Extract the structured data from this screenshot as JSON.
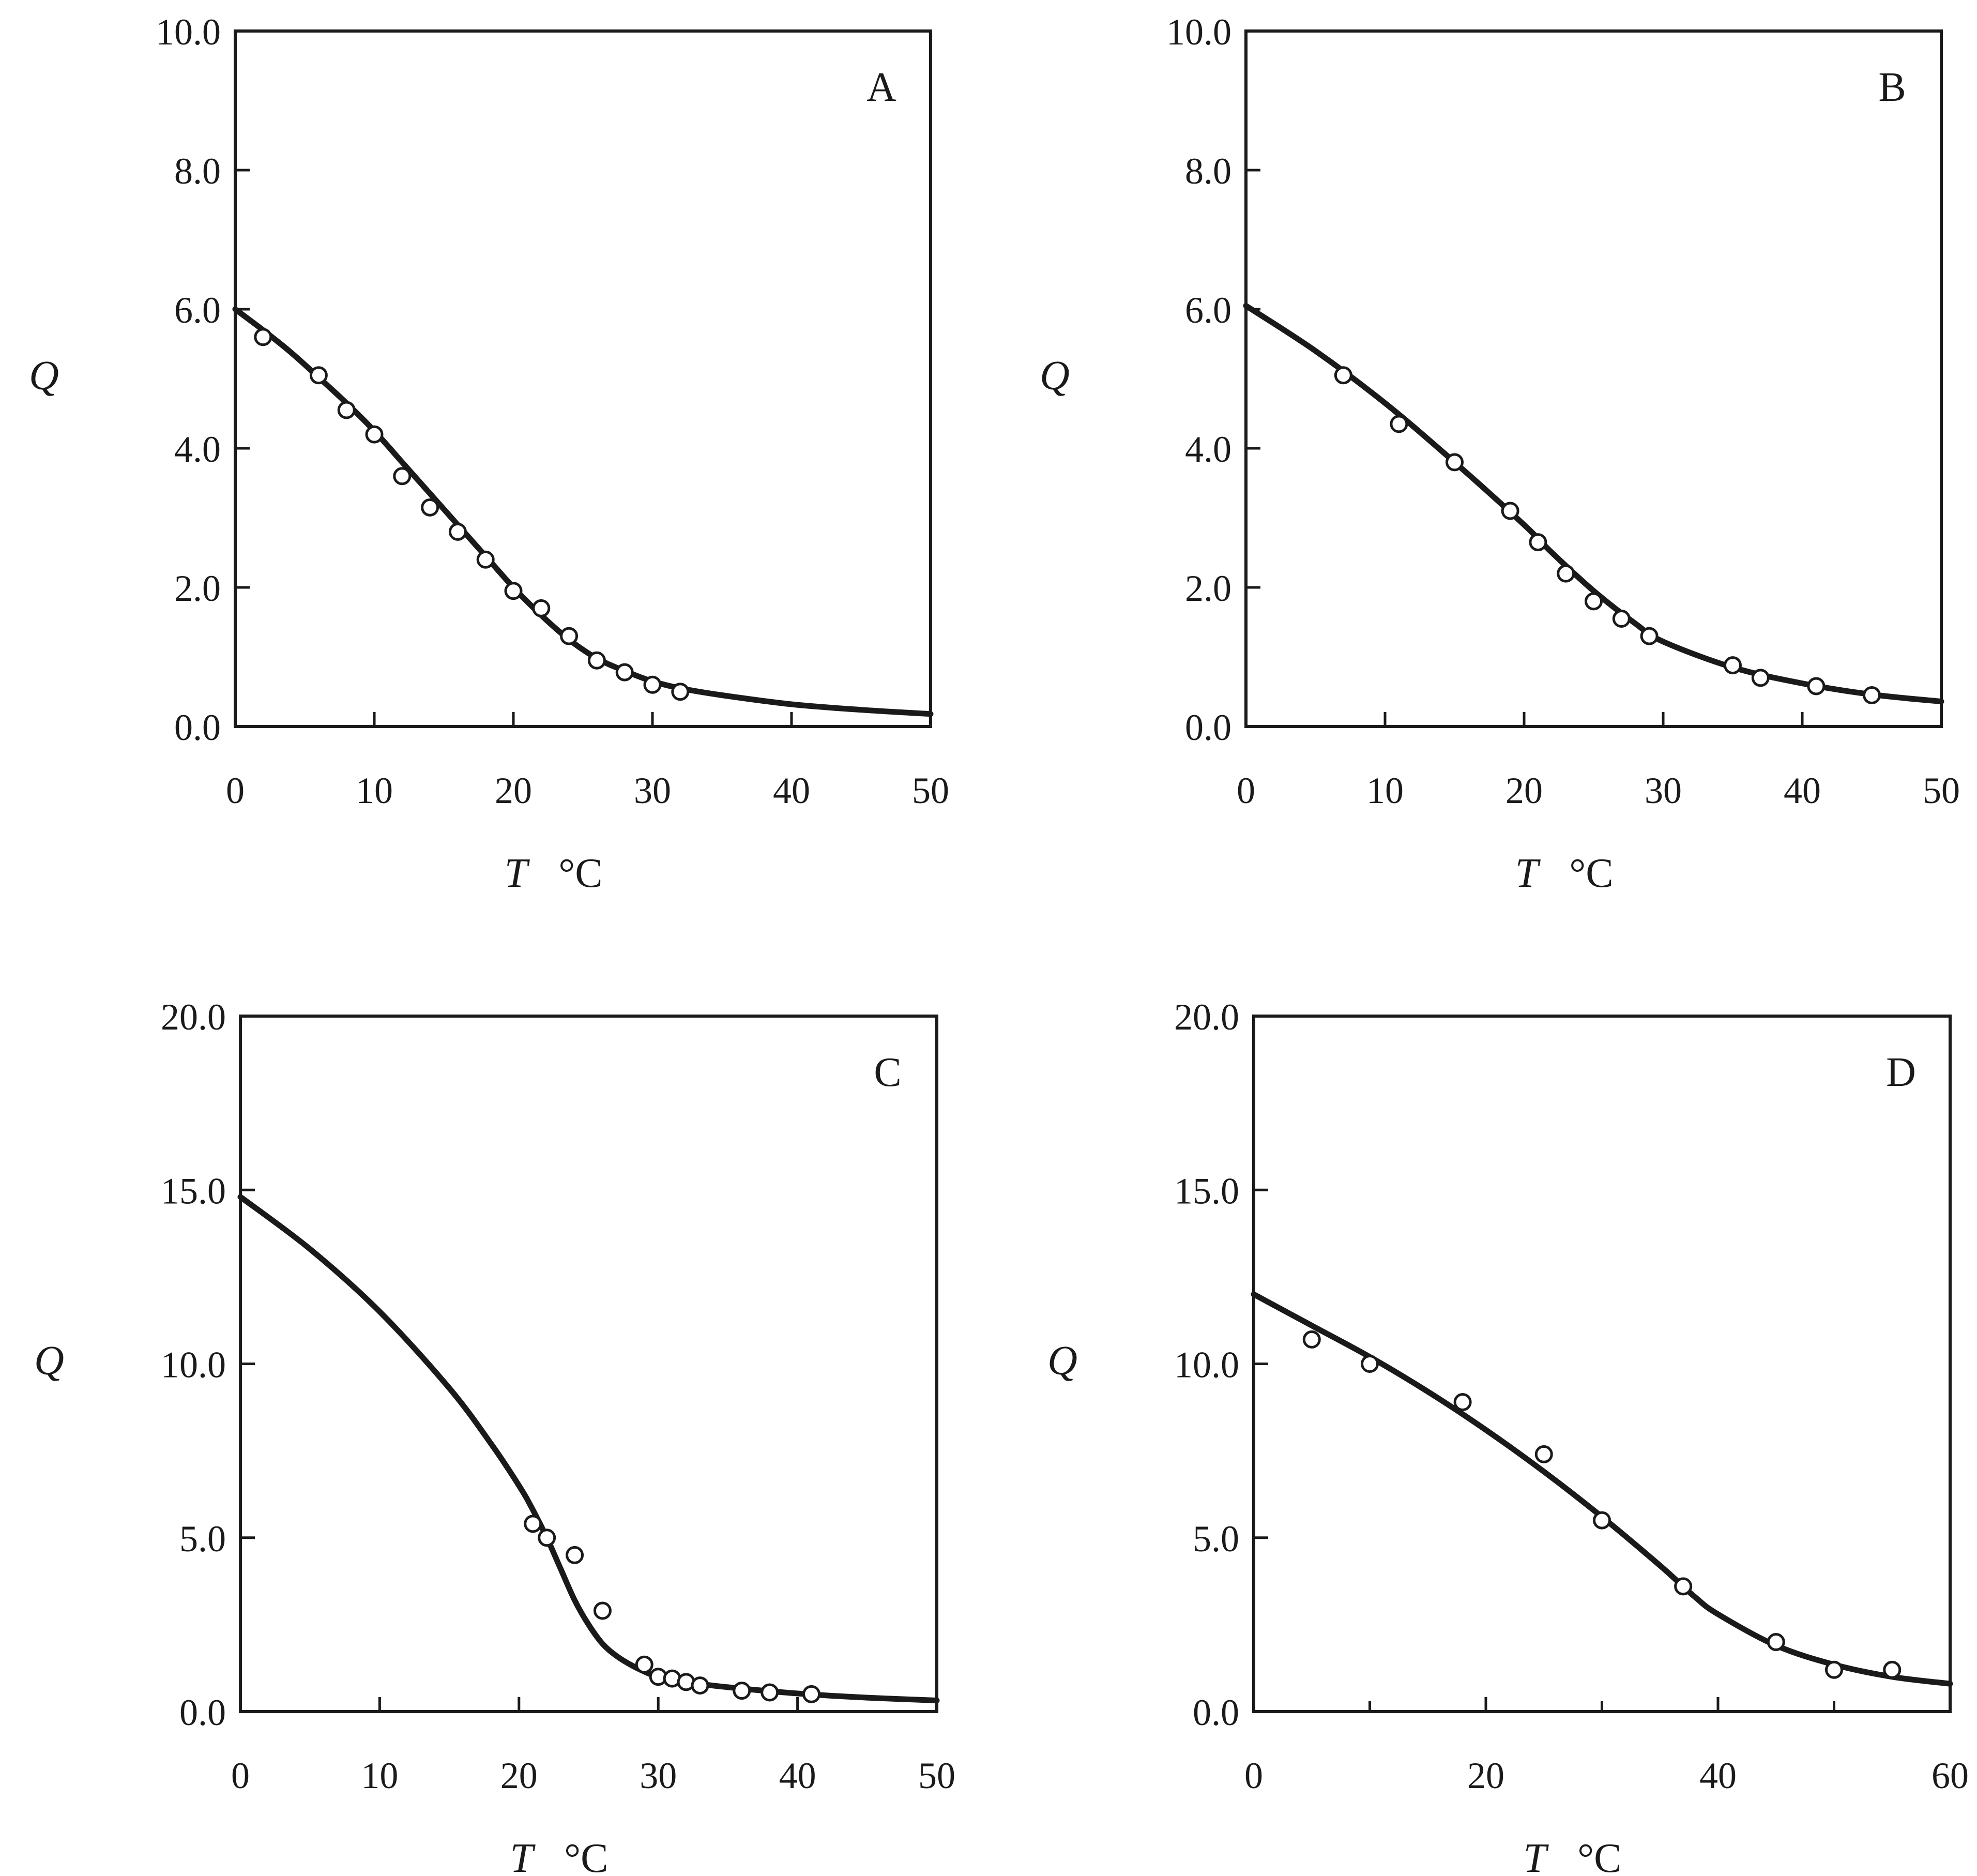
{
  "chart_data": [
    {
      "type": "line",
      "panel": "A",
      "ylabel": "Q",
      "xlabel_var": "T",
      "xlabel_unit": "°C",
      "xlim": [
        0,
        50
      ],
      "ylim": [
        0,
        10
      ],
      "xticks": [
        0,
        10,
        20,
        30,
        40,
        50
      ],
      "xtick_labels": [
        "0",
        "10",
        "20",
        "30",
        "40",
        "50"
      ],
      "yticks": [
        0,
        2,
        4,
        6,
        8,
        10
      ],
      "ytick_labels": [
        "0.0",
        "2.0",
        "4.0",
        "6.0",
        "8.0",
        "10.0"
      ],
      "series": [
        {
          "kind": "points",
          "x": [
            2,
            6,
            8,
            10,
            12,
            14,
            16,
            18,
            20,
            22,
            24,
            26,
            28,
            30,
            32
          ],
          "y": [
            5.6,
            5.05,
            4.55,
            4.2,
            3.6,
            3.15,
            2.8,
            2.4,
            1.95,
            1.7,
            1.3,
            0.95,
            0.78,
            0.6,
            0.5
          ]
        },
        {
          "kind": "curve",
          "x": [
            0,
            2,
            4,
            6,
            8,
            10,
            12,
            14,
            16,
            18,
            20,
            22,
            24,
            26,
            28,
            30,
            32,
            35,
            40,
            45,
            50
          ],
          "y": [
            6.0,
            5.7,
            5.38,
            5.02,
            4.65,
            4.25,
            3.8,
            3.35,
            2.9,
            2.45,
            2.0,
            1.6,
            1.25,
            0.98,
            0.8,
            0.65,
            0.55,
            0.45,
            0.32,
            0.24,
            0.18
          ]
        }
      ]
    },
    {
      "type": "line",
      "panel": "B",
      "ylabel": "Q",
      "xlabel_var": "T",
      "xlabel_unit": "°C",
      "xlim": [
        0,
        50
      ],
      "ylim": [
        0,
        10
      ],
      "xticks": [
        0,
        10,
        20,
        30,
        40,
        50
      ],
      "xtick_labels": [
        "0",
        "10",
        "20",
        "30",
        "40",
        "50"
      ],
      "yticks": [
        0,
        2,
        4,
        6,
        8,
        10
      ],
      "ytick_labels": [
        "0.0",
        "2.0",
        "4.0",
        "6.0",
        "8.0",
        "10.0"
      ],
      "series": [
        {
          "kind": "points",
          "x": [
            7,
            11,
            15,
            19,
            21,
            23,
            25,
            27,
            29,
            35,
            37,
            41,
            45
          ],
          "y": [
            5.05,
            4.35,
            3.8,
            3.1,
            2.65,
            2.2,
            1.8,
            1.55,
            1.3,
            0.88,
            0.7,
            0.58,
            0.45
          ]
        },
        {
          "kind": "curve",
          "x": [
            0,
            5,
            10,
            15,
            20,
            22,
            25,
            28,
            30,
            35,
            40,
            45,
            50
          ],
          "y": [
            6.05,
            5.4,
            4.65,
            3.8,
            2.9,
            2.5,
            1.95,
            1.48,
            1.22,
            0.85,
            0.62,
            0.46,
            0.36
          ]
        }
      ]
    },
    {
      "type": "line",
      "panel": "C",
      "ylabel": "Q",
      "xlabel_var": "T",
      "xlabel_unit": "°C",
      "xlim": [
        0,
        50
      ],
      "ylim": [
        0,
        20
      ],
      "xticks": [
        0,
        10,
        20,
        30,
        40,
        50
      ],
      "xtick_labels": [
        "0",
        "10",
        "20",
        "30",
        "40",
        "50"
      ],
      "yticks": [
        0,
        5,
        10,
        15,
        20
      ],
      "ytick_labels": [
        "0.0",
        "5.0",
        "10.0",
        "15.0",
        "20.0"
      ],
      "series": [
        {
          "kind": "points",
          "x": [
            21,
            22,
            24,
            26,
            29,
            30,
            31,
            32,
            33,
            36,
            38,
            41
          ],
          "y": [
            5.4,
            5.0,
            4.5,
            2.9,
            1.35,
            1.0,
            0.95,
            0.85,
            0.75,
            0.6,
            0.55,
            0.5
          ]
        },
        {
          "kind": "curve",
          "x": [
            0,
            5,
            10,
            15,
            18,
            20,
            21,
            22,
            23,
            24,
            25,
            26,
            27,
            28,
            29,
            30,
            32,
            35,
            40,
            45,
            50
          ],
          "y": [
            14.8,
            13.3,
            11.5,
            9.3,
            7.7,
            6.5,
            5.8,
            5.0,
            4.1,
            3.2,
            2.5,
            1.95,
            1.6,
            1.35,
            1.15,
            1.0,
            0.85,
            0.7,
            0.52,
            0.4,
            0.32
          ]
        }
      ]
    },
    {
      "type": "line",
      "panel": "D",
      "ylabel": "Q",
      "xlabel_var": "T",
      "xlabel_unit": "°C",
      "xlim": [
        0,
        60
      ],
      "ylim": [
        0,
        20
      ],
      "xticks": [
        0,
        20,
        40,
        60
      ],
      "xtick_labels": [
        "0",
        "20",
        "40",
        "60"
      ],
      "minor_xticks": [
        10,
        30,
        50
      ],
      "yticks": [
        0,
        5,
        10,
        15,
        20
      ],
      "ytick_labels": [
        "0.0",
        "5.0",
        "10.0",
        "15.0",
        "20.0"
      ],
      "series": [
        {
          "kind": "points",
          "x": [
            5,
            10,
            18,
            25,
            30,
            37,
            45,
            50,
            55
          ],
          "y": [
            10.7,
            10.0,
            8.9,
            7.4,
            5.5,
            3.6,
            2.0,
            1.2,
            1.2
          ]
        },
        {
          "kind": "curve",
          "x": [
            0,
            5,
            10,
            15,
            20,
            25,
            30,
            35,
            38,
            40,
            45,
            50,
            55,
            60
          ],
          "y": [
            12.0,
            11.1,
            10.2,
            9.2,
            8.1,
            6.9,
            5.6,
            4.2,
            3.3,
            2.8,
            1.9,
            1.35,
            1.0,
            0.8
          ]
        }
      ]
    }
  ],
  "colors": {
    "ink": "#1a1a1a",
    "background": "#ffffff"
  }
}
